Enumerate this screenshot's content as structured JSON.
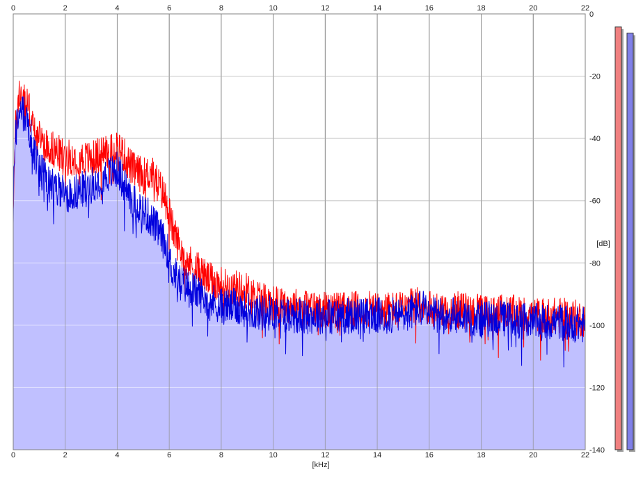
{
  "chart_data": {
    "type": "area",
    "title": "",
    "xlabel": "[kHz]",
    "ylabel": "[dB]",
    "xlim": [
      0,
      22
    ],
    "ylim": [
      -140,
      0
    ],
    "x_ticks": [
      "0",
      "2",
      "4",
      "6",
      "8",
      "10",
      "12",
      "14",
      "16",
      "18",
      "20",
      "22"
    ],
    "y_ticks": [
      "0",
      "-20",
      "-40",
      "-60",
      "-80",
      "-100",
      "-120",
      "-140"
    ],
    "grid": true,
    "series": [
      {
        "color": "#ff0000",
        "envelope": {
          "x": [
            0,
            0.1,
            0.25,
            0.4,
            0.6,
            0.8,
            1.0,
            1.3,
            1.6,
            2.0,
            2.5,
            3.0,
            3.5,
            3.8,
            4.0,
            4.3,
            4.6,
            5.0,
            5.3,
            5.6,
            5.9,
            6.1,
            6.4,
            6.8,
            7.2,
            7.6,
            8.0,
            8.5,
            9.0,
            9.5,
            10.0,
            11,
            12,
            13,
            14,
            15,
            15.7,
            16,
            17,
            18,
            19,
            20,
            21,
            22
          ],
          "y": [
            -60,
            -35,
            -25,
            -28,
            -30,
            -38,
            -40,
            -42,
            -44,
            -46,
            -46,
            -47,
            -44,
            -44,
            -42,
            -46,
            -50,
            -52,
            -51,
            -55,
            -60,
            -68,
            -75,
            -80,
            -83,
            -86,
            -87,
            -88,
            -89,
            -91,
            -93,
            -94,
            -95,
            -95,
            -95,
            -95,
            -93,
            -95,
            -95,
            -96,
            -96,
            -97,
            -97,
            -98
          ]
        }
      },
      {
        "color": "#0000dd",
        "fill": "#c0c0ff",
        "envelope": {
          "x": [
            0,
            0.1,
            0.25,
            0.4,
            0.6,
            0.8,
            1.0,
            1.3,
            1.6,
            2.0,
            2.5,
            3.0,
            3.5,
            3.8,
            4.0,
            4.3,
            4.6,
            5.0,
            5.3,
            5.6,
            5.9,
            6.1,
            6.4,
            6.8,
            7.2,
            7.6,
            8.0,
            8.5,
            9.0,
            9.5,
            10.0,
            11,
            12,
            13,
            14,
            15,
            15.7,
            16,
            17,
            18,
            19,
            20,
            21,
            22
          ],
          "y": [
            -60,
            -38,
            -30,
            -32,
            -36,
            -45,
            -50,
            -53,
            -56,
            -58,
            -57,
            -55,
            -52,
            -51,
            -50,
            -55,
            -60,
            -63,
            -66,
            -70,
            -75,
            -82,
            -86,
            -88,
            -90,
            -92,
            -94,
            -94,
            -95,
            -96,
            -96,
            -97,
            -97,
            -97,
            -97,
            -97,
            -94,
            -97,
            -97,
            -98,
            -98,
            -99,
            -99,
            -100
          ]
        }
      }
    ],
    "level_meters": [
      {
        "color": "#f08080",
        "level_db": -2
      },
      {
        "color": "#8080e8",
        "level_db": -4
      }
    ]
  }
}
